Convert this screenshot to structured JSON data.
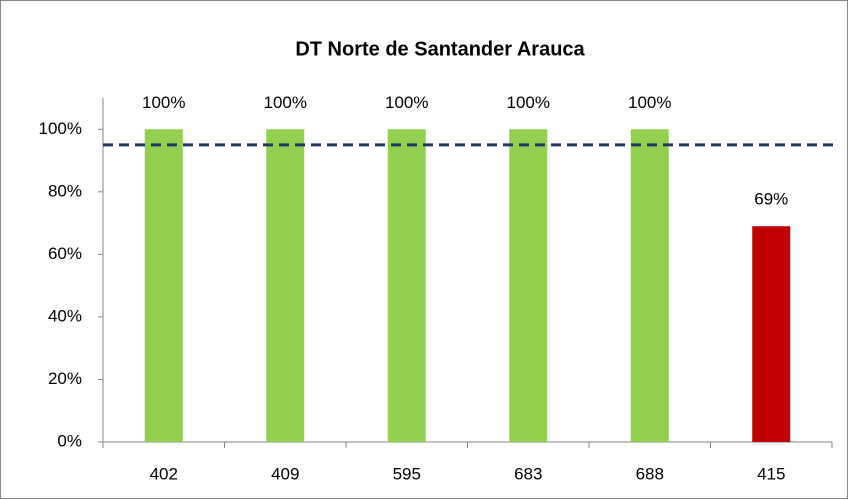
{
  "chart_data": {
    "type": "bar",
    "title": "DT Norte de Santander Arauca",
    "categories": [
      "402",
      "409",
      "595",
      "683",
      "688",
      "415"
    ],
    "values": [
      100,
      100,
      100,
      100,
      100,
      69
    ],
    "value_labels": [
      "100%",
      "100%",
      "100%",
      "100%",
      "100%",
      "69%"
    ],
    "colors": [
      "#92d050",
      "#92d050",
      "#92d050",
      "#92d050",
      "#92d050",
      "#c00000"
    ],
    "ylim": [
      0,
      110
    ],
    "yticks": [
      {
        "value": 0,
        "label": "0%"
      },
      {
        "value": 20,
        "label": "20%"
      },
      {
        "value": 40,
        "label": "40%"
      },
      {
        "value": 60,
        "label": "60%"
      },
      {
        "value": 80,
        "label": "80%"
      },
      {
        "value": 100,
        "label": "100%"
      }
    ],
    "reference_line": {
      "value": 95,
      "color": "#1f3864"
    },
    "grid": false
  }
}
